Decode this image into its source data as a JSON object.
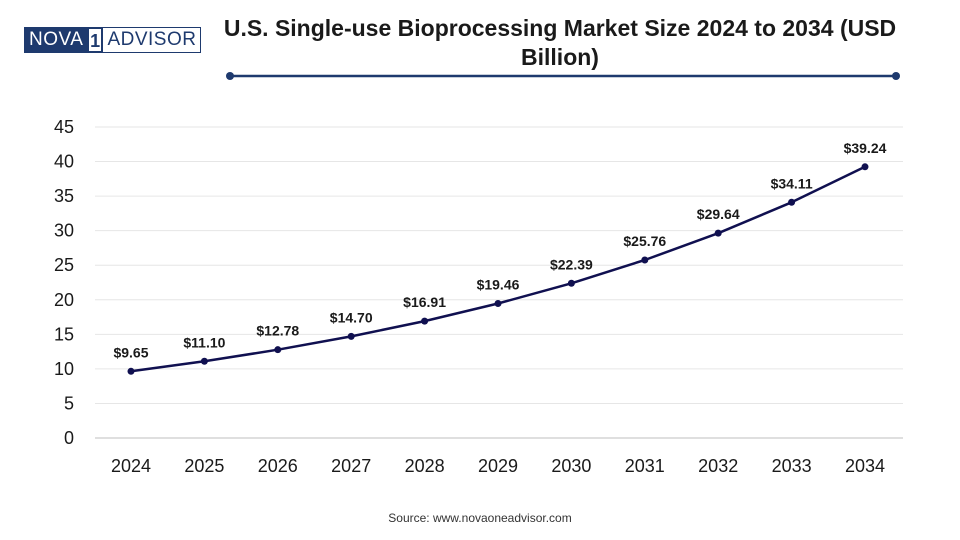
{
  "logo": {
    "part1": "NOVA",
    "part2": "1",
    "part3": "ADVISOR"
  },
  "source": "Source: www.novaoneadvisor.com",
  "colors": {
    "line": "#101050",
    "grid": "#e6e6e6",
    "divider": "#1e3a6e",
    "logo": "#1e3a6e"
  },
  "chart_data": {
    "type": "line",
    "title": "U.S. Single-use Bioprocessing Market Size 2024 to 2034 (USD Billion)",
    "xlabel": "",
    "ylabel": "",
    "categories": [
      "2024",
      "2025",
      "2026",
      "2027",
      "2028",
      "2029",
      "2030",
      "2031",
      "2032",
      "2033",
      "2034"
    ],
    "values": [
      9.65,
      11.1,
      12.78,
      14.7,
      16.91,
      19.46,
      22.39,
      25.76,
      29.64,
      34.11,
      39.24
    ],
    "labels": [
      "$9.65",
      "$11.10",
      "$12.78",
      "$14.70",
      "$16.91",
      "$19.46",
      "$22.39",
      "$25.76",
      "$29.64",
      "$34.11",
      "$39.24"
    ],
    "yticks": [
      0,
      5,
      10,
      15,
      20,
      25,
      30,
      35,
      40,
      45
    ],
    "ylim": [
      0,
      45
    ],
    "grid": true,
    "legend": "none"
  }
}
